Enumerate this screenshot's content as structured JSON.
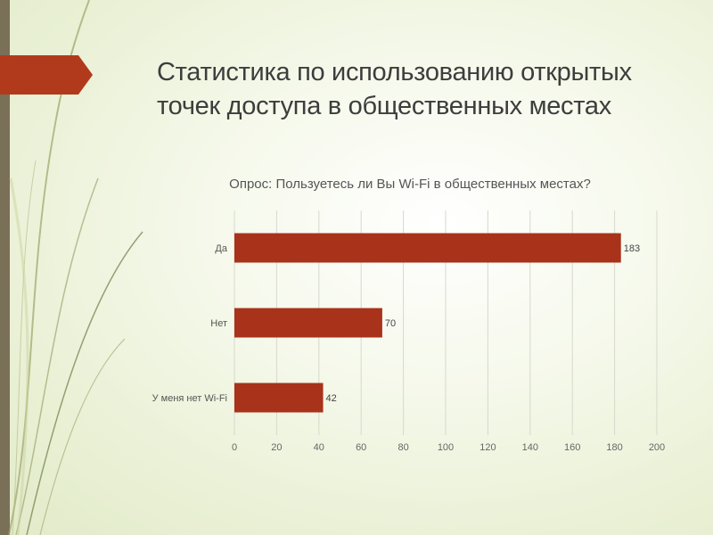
{
  "slide": {
    "title_line1": "Статистика по использованию открытых",
    "title_line2": "точек доступа в общественных местах",
    "accent_color": "#b23a1c",
    "sidebar_color": "#7a7057"
  },
  "chart_data": {
    "type": "bar",
    "orientation": "horizontal",
    "title": "Опрос: Пользуетесь ли Вы Wi-Fi в общественных местах?",
    "categories": [
      "Да",
      "Нет",
      "У меня нет Wi-Fi"
    ],
    "values": [
      183,
      70,
      42
    ],
    "data_labels": [
      "183",
      "70",
      "42"
    ],
    "xlim": [
      0,
      200
    ],
    "xticks": [
      0,
      20,
      40,
      60,
      80,
      100,
      120,
      140,
      160,
      180,
      200
    ],
    "grid": "vertical",
    "bar_color": "#a8321a"
  }
}
